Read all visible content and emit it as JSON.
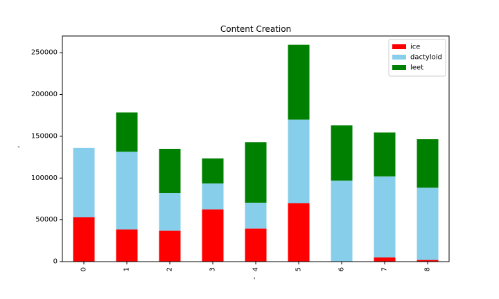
{
  "chart_data": {
    "type": "bar",
    "stacked": true,
    "title": "Content Creation",
    "xlabel": "-",
    "ylabel": "-",
    "categories": [
      "0",
      "1",
      "2",
      "3",
      "4",
      "5",
      "6",
      "7",
      "8"
    ],
    "series": [
      {
        "name": "ice",
        "color": "#ff0000",
        "values": [
          53000,
          38500,
          37000,
          62500,
          39500,
          70000,
          0,
          5000,
          2000
        ]
      },
      {
        "name": "dactyloid",
        "color": "#87ceeb",
        "values": [
          83000,
          93000,
          45000,
          31000,
          31000,
          100000,
          97000,
          97000,
          86500
        ]
      },
      {
        "name": "leet",
        "color": "#008000",
        "values": [
          0,
          47000,
          53000,
          30000,
          72500,
          89500,
          66000,
          52500,
          58000
        ]
      }
    ],
    "ylim": [
      0,
      270000
    ],
    "yticks": [
      0,
      50000,
      100000,
      150000,
      200000,
      250000
    ],
    "grid": false,
    "legend_position": "top-right"
  }
}
